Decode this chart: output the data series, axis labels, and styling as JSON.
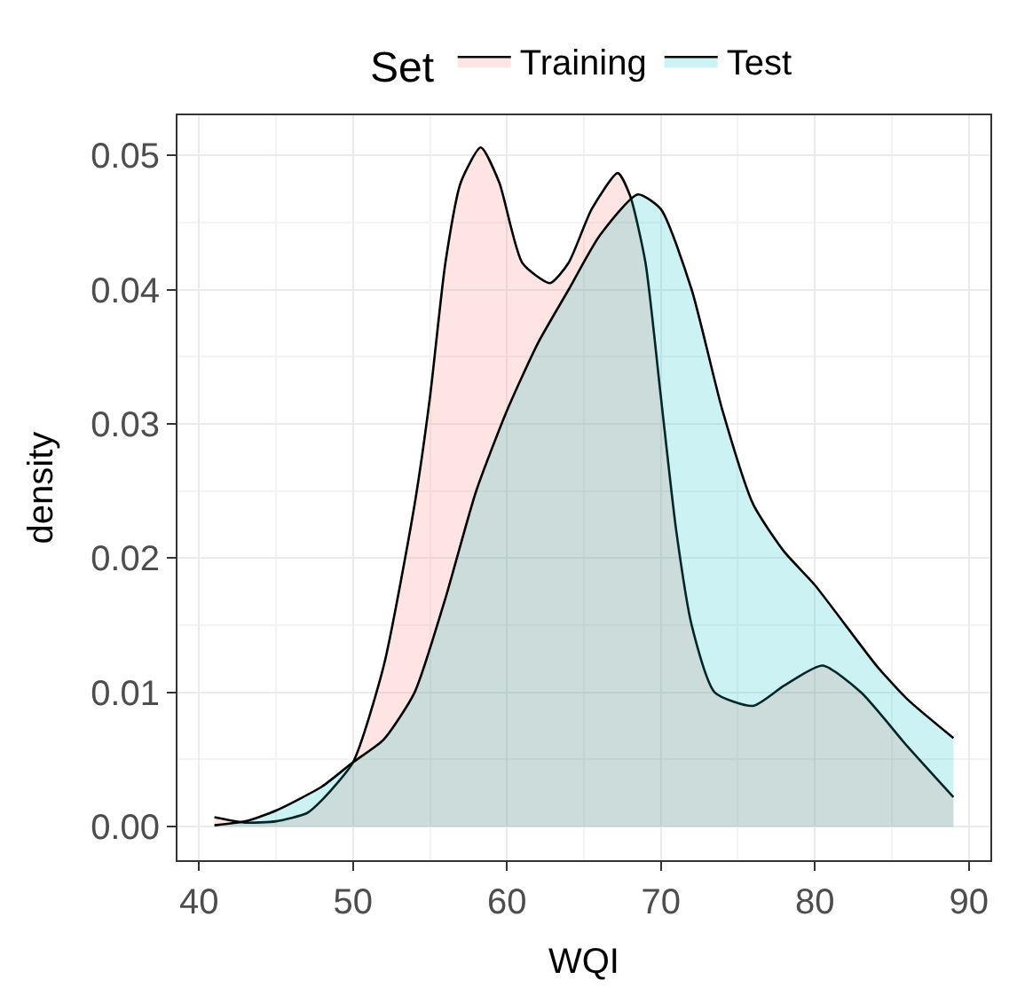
{
  "chart_data": {
    "type": "area",
    "xlabel": "WQI",
    "ylabel": "density",
    "legend_title": "Set",
    "legend": "top",
    "grid": true,
    "xlim": [
      38.6,
      91.4
    ],
    "xticks": [
      40,
      50,
      60,
      70,
      80,
      90
    ],
    "ylim": [
      -0.0025,
      0.053
    ],
    "yticks": [
      {
        "value": 0,
        "label": "0.00"
      },
      {
        "value": 0.01,
        "label": "0.01"
      },
      {
        "value": 0.02,
        "label": "0.02"
      },
      {
        "value": 0.03,
        "label": "0.03"
      },
      {
        "value": 0.04,
        "label": "0.04"
      },
      {
        "value": 0.05,
        "label": "0.05"
      }
    ],
    "series": [
      {
        "name": "Training",
        "color": "#f8766d",
        "x": [
          41,
          43,
          45,
          47,
          48,
          50,
          52,
          54,
          55,
          56,
          57,
          58.3,
          59.5,
          61,
          62.8,
          64,
          65.5,
          67.2,
          68,
          69,
          70,
          71,
          72,
          73.5,
          76,
          78,
          80.5,
          83,
          86,
          89
        ],
        "values": [
          0.0007,
          0.0003,
          0.0004,
          0.001,
          0.002,
          0.0048,
          0.012,
          0.024,
          0.032,
          0.042,
          0.048,
          0.0506,
          0.048,
          0.042,
          0.0405,
          0.042,
          0.046,
          0.0487,
          0.047,
          0.042,
          0.032,
          0.022,
          0.015,
          0.01,
          0.009,
          0.0105,
          0.012,
          0.01,
          0.006,
          0.0022
        ]
      },
      {
        "name": "Test",
        "color": "#00bfc4",
        "x": [
          41,
          43,
          45,
          48,
          50,
          52,
          54,
          56,
          58,
          60,
          62,
          64,
          66,
          68.5,
          70,
          72,
          74,
          76,
          78,
          80,
          82,
          84,
          86,
          89
        ],
        "values": [
          0.0001,
          0.0004,
          0.0012,
          0.003,
          0.0048,
          0.0065,
          0.01,
          0.017,
          0.025,
          0.031,
          0.036,
          0.04,
          0.044,
          0.0471,
          0.046,
          0.04,
          0.031,
          0.024,
          0.0205,
          0.018,
          0.015,
          0.012,
          0.0095,
          0.0066
        ]
      }
    ]
  }
}
